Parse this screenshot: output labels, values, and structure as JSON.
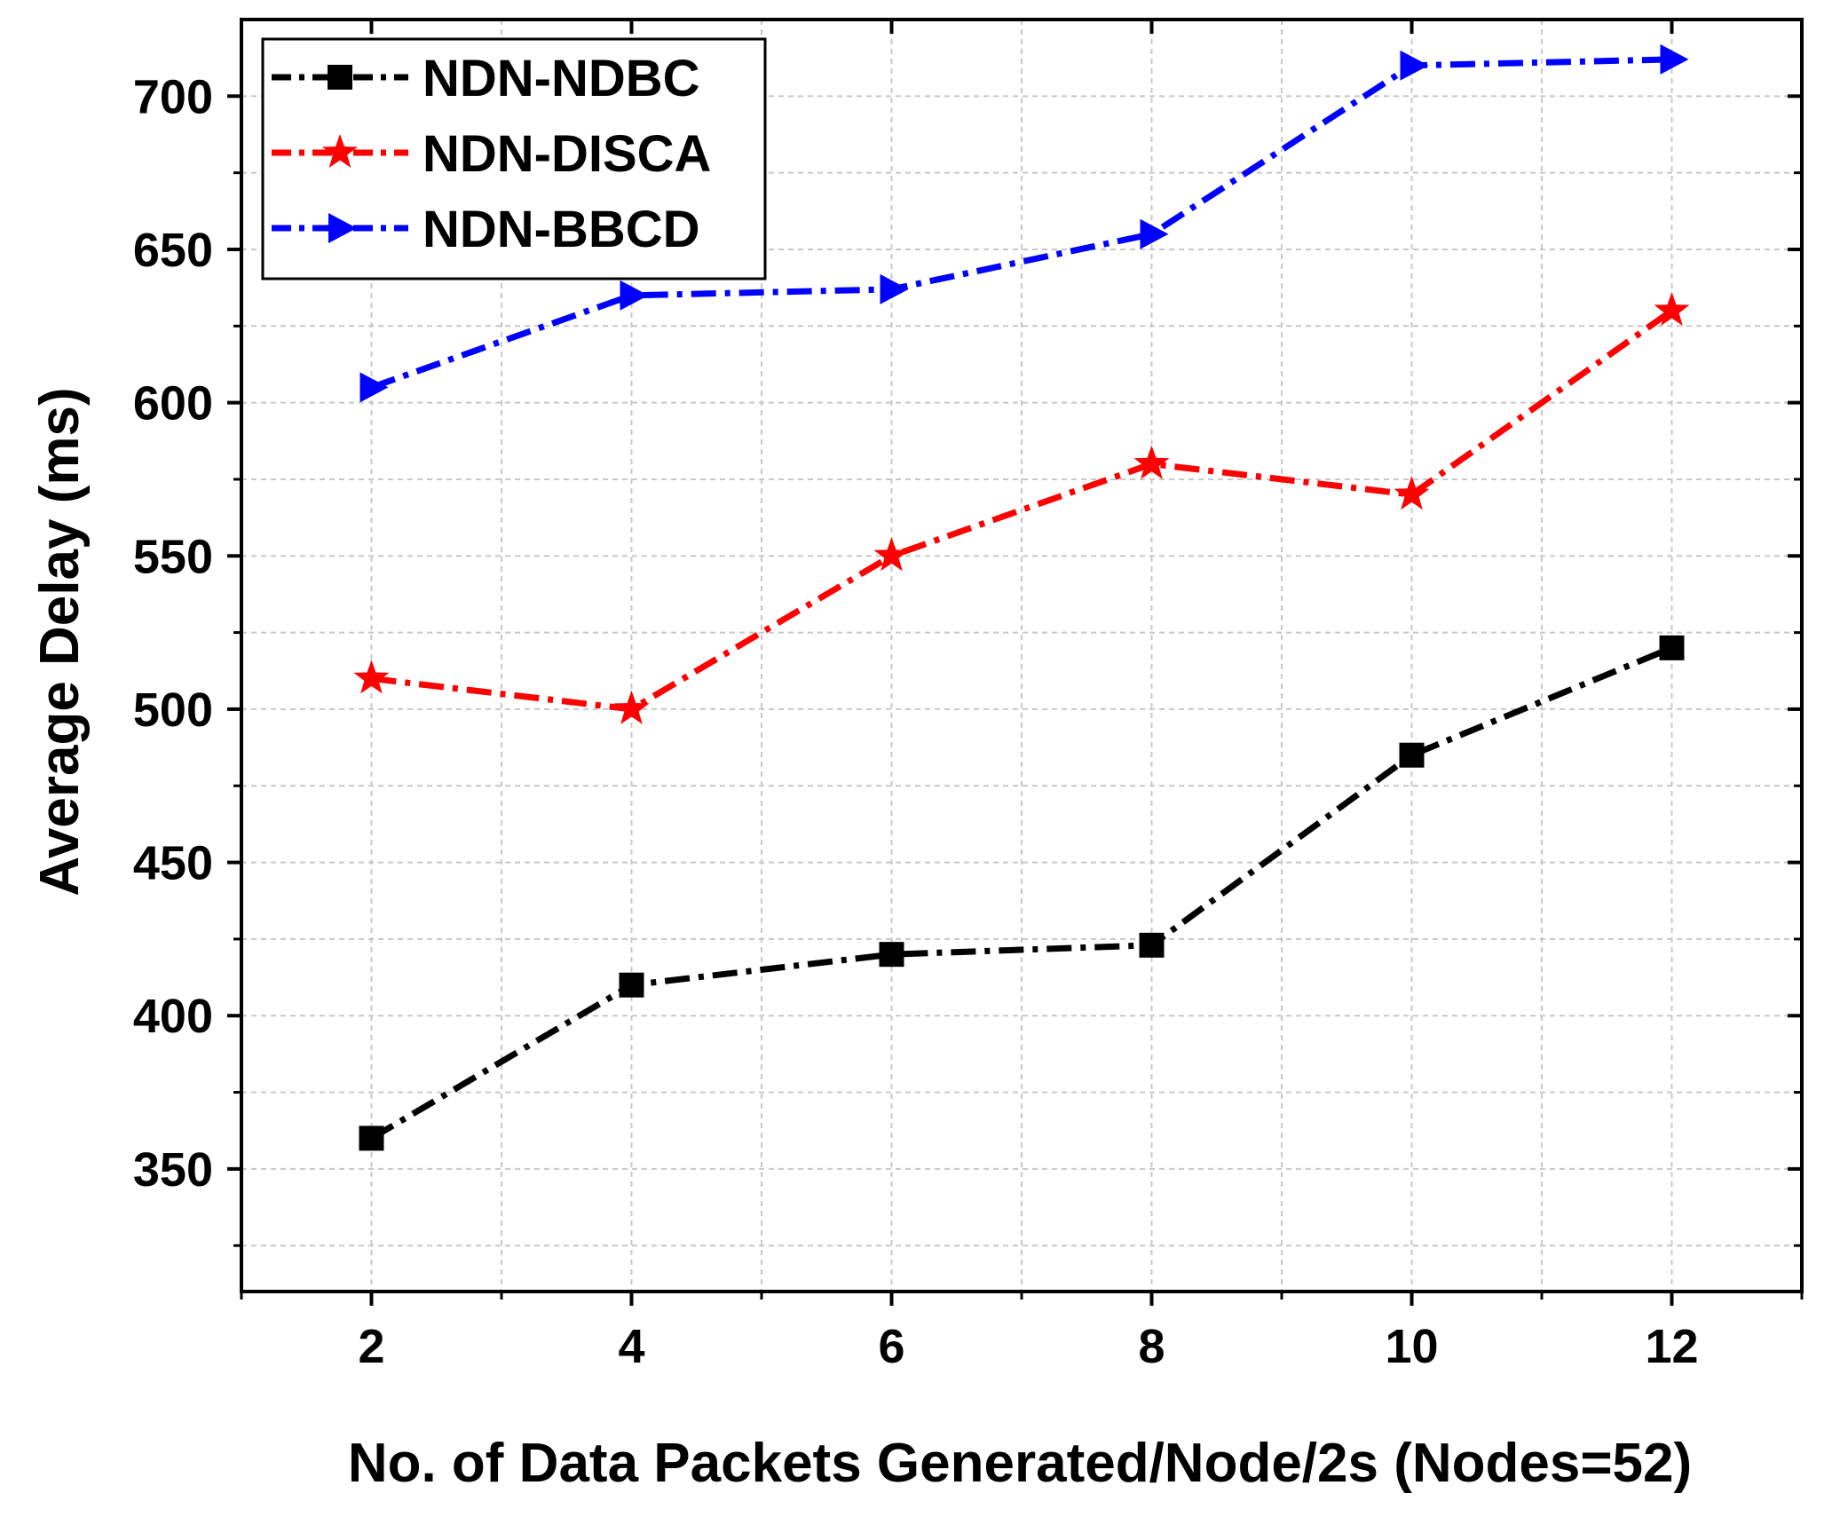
{
  "chart_data": {
    "type": "line",
    "title": "",
    "xlabel": "No. of Data Packets Generated/Node/2s (Nodes=52)",
    "ylabel": "Average Delay (ms)",
    "x": [
      2,
      4,
      6,
      8,
      10,
      12
    ],
    "xlim": [
      1,
      13
    ],
    "ylim": [
      310,
      725
    ],
    "x_ticks": [
      2,
      4,
      6,
      8,
      10,
      12
    ],
    "x_minor_ticks": [
      1,
      3,
      5,
      7,
      9,
      11,
      13
    ],
    "y_ticks": [
      350,
      400,
      450,
      500,
      550,
      600,
      650,
      700
    ],
    "y_minor_ticks": [
      325,
      375,
      425,
      475,
      525,
      575,
      625,
      675,
      725
    ],
    "grid": true,
    "legend_position": "top-left",
    "series": [
      {
        "name": "NDN-NDBC",
        "color": "#000000",
        "marker": "square",
        "values": [
          360,
          410,
          420,
          423,
          485,
          520
        ]
      },
      {
        "name": "NDN-DISCA",
        "color": "#ff0000",
        "marker": "star",
        "values": [
          510,
          500,
          550,
          580,
          570,
          630
        ]
      },
      {
        "name": "NDN-BBCD",
        "color": "#0000ff",
        "marker": "triangle-right",
        "values": [
          605,
          635,
          637,
          655,
          710,
          712
        ]
      }
    ]
  }
}
